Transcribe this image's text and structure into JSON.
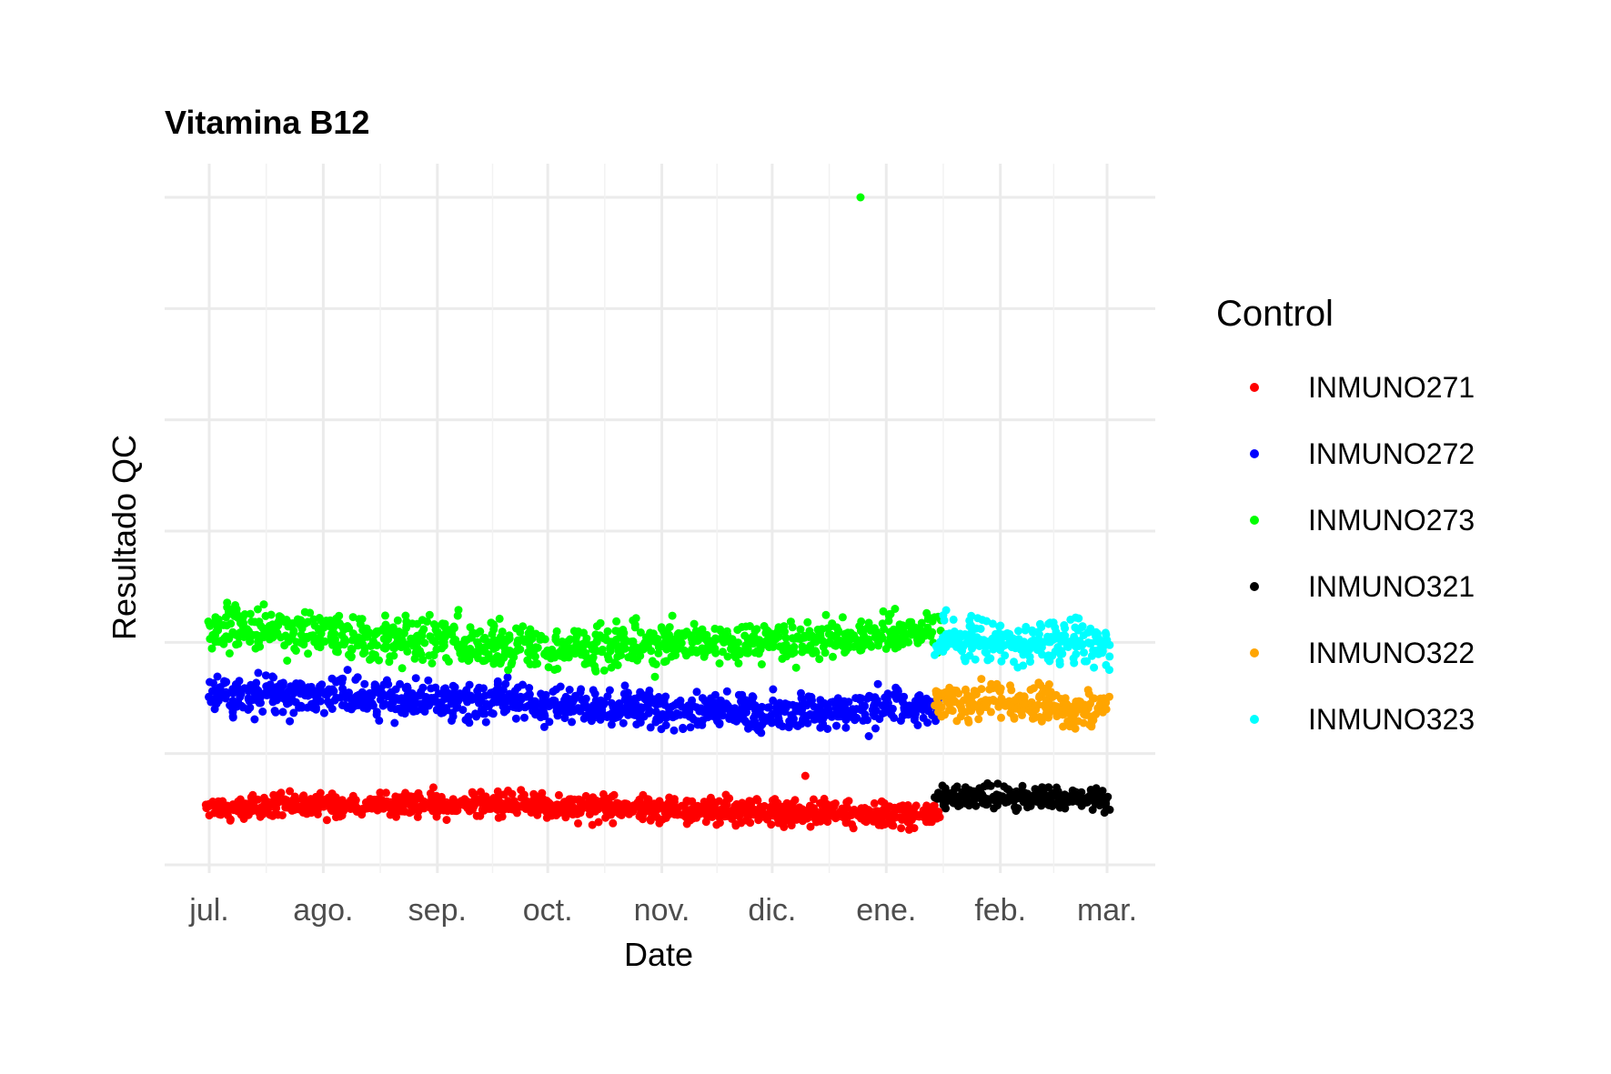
{
  "chart_data": {
    "type": "scatter",
    "title": "Vitamina B12",
    "xlabel": "Date",
    "ylabel": "Resultado QC",
    "x_ticks": [
      "jul.",
      "ago.",
      "sep.",
      "oct.",
      "nov.",
      "dic.",
      "ene.",
      "feb.",
      "mar."
    ],
    "x_range": [
      "2023-07-01",
      "2024-03-01"
    ],
    "y_range": [
      0,
      600
    ],
    "y_gridlines": [
      0,
      100,
      200,
      300,
      400,
      500,
      600
    ],
    "y_tick_labels_shown": false,
    "grid": true,
    "legend": {
      "title": "Control",
      "placement": "right"
    },
    "series": [
      {
        "name": "INMUNO271",
        "color": "#ff0000",
        "date_range": [
          "2023-07-01",
          "2024-01-15"
        ],
        "approx_mean": 50,
        "approx_spread": 10,
        "outliers": [
          {
            "date": "2023-12-10",
            "value": 80
          }
        ]
      },
      {
        "name": "INMUNO272",
        "color": "#0000ff",
        "date_range": [
          "2023-07-01",
          "2024-01-15"
        ],
        "approx_mean": 145,
        "approx_spread": 15
      },
      {
        "name": "INMUNO273",
        "color": "#00ff00",
        "date_range": [
          "2023-07-01",
          "2024-01-15"
        ],
        "approx_mean": 205,
        "approx_spread": 18,
        "outliers": [
          {
            "date": "2023-12-25",
            "value": 600
          }
        ]
      },
      {
        "name": "INMUNO321",
        "color": "#000000",
        "date_range": [
          "2024-01-15",
          "2024-03-01"
        ],
        "approx_mean": 57,
        "approx_spread": 9
      },
      {
        "name": "INMUNO322",
        "color": "#ffa500",
        "date_range": [
          "2024-01-15",
          "2024-03-01"
        ],
        "approx_mean": 145,
        "approx_spread": 15
      },
      {
        "name": "INMUNO323",
        "color": "#00ffff",
        "date_range": [
          "2024-01-15",
          "2024-03-01"
        ],
        "approx_mean": 208,
        "approx_spread": 18
      }
    ]
  }
}
